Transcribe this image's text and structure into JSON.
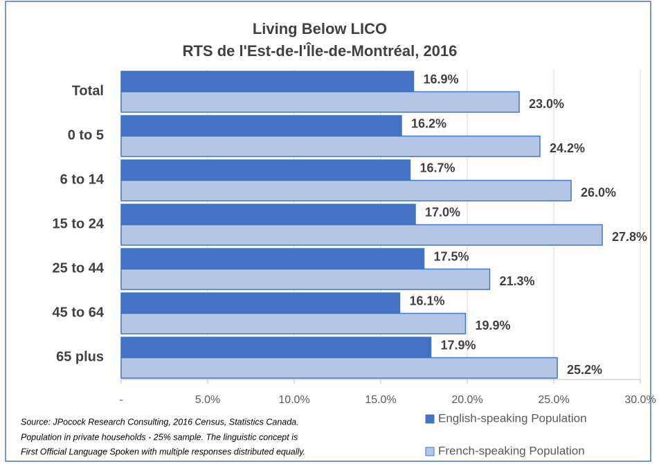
{
  "chart_data": {
    "type": "barh",
    "title": [
      "Living Below LICO",
      "RTS de l'Est-de-l'Île-de-Montréal, 2016"
    ],
    "categories": [
      "Total",
      "0 to 5",
      "6 to 14",
      "15 to 24",
      "25 to 44",
      "45 to 64",
      "65 plus"
    ],
    "series": [
      {
        "name": "English-speaking Population",
        "color": "#4472c4",
        "values": [
          16.9,
          16.2,
          16.7,
          17.0,
          17.5,
          16.1,
          17.9
        ],
        "value_labels": [
          "16.9%",
          "16.2%",
          "16.7%",
          "17.0%",
          "17.5%",
          "16.1%",
          "17.9%"
        ]
      },
      {
        "name": "French-speaking Population",
        "color": "#b4c7e7",
        "values": [
          23.0,
          24.2,
          26.0,
          27.8,
          21.3,
          19.9,
          25.2
        ],
        "value_labels": [
          "23.0%",
          "24.2%",
          "26.0%",
          "27.8%",
          "21.3%",
          "19.9%",
          "25.2%"
        ]
      }
    ],
    "xlim": [
      0,
      30
    ],
    "xticks": [
      {
        "value": 0,
        "label": "-"
      },
      {
        "value": 5,
        "label": "5.0%"
      },
      {
        "value": 10,
        "label": "10.0%"
      },
      {
        "value": 15,
        "label": "15.0%"
      },
      {
        "value": 20,
        "label": "20.0%"
      },
      {
        "value": 25,
        "label": "25.0%"
      },
      {
        "value": 30,
        "label": "30.0%"
      }
    ],
    "grid": true,
    "legend": "bottom-right",
    "source": [
      "Source: JPocock Research Consulting, 2016 Census, Statistics Canada.",
      "Population in private households - 25% sample. The linguistic concept is",
      "First Official Language Spoken with multiple responses distributed equally."
    ]
  }
}
